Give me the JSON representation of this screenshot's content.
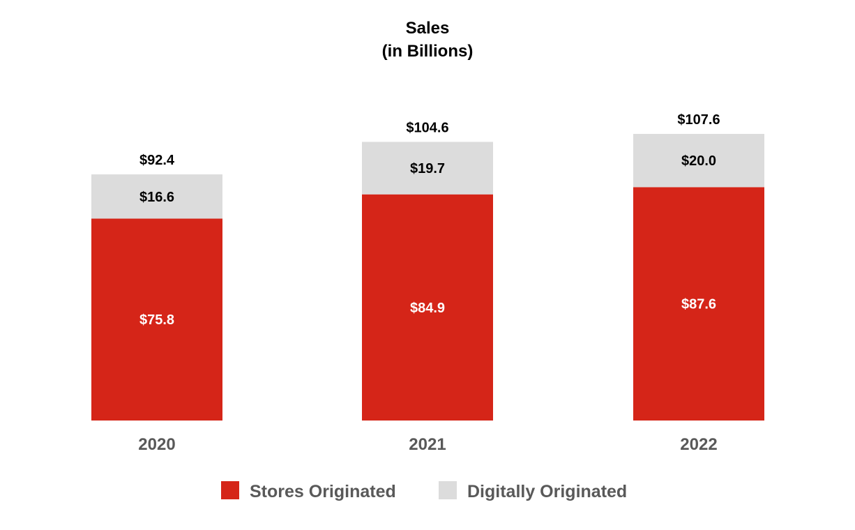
{
  "chart_data": {
    "type": "bar",
    "stacked": true,
    "title": [
      "Sales",
      "(in Billions)"
    ],
    "categories": [
      "2020",
      "2021",
      "2022"
    ],
    "series": [
      {
        "name": "Stores Originated",
        "values": [
          75.8,
          84.9,
          87.6
        ],
        "labels": [
          "$75.8",
          "$84.9",
          "$87.6"
        ],
        "color": "#d52518"
      },
      {
        "name": "Digitally Originated",
        "values": [
          16.6,
          19.7,
          20.0
        ],
        "labels": [
          "$16.6",
          "$19.7",
          "$20.0"
        ],
        "color": "#dcdcdc"
      }
    ],
    "totals": [
      92.4,
      104.6,
      107.6
    ],
    "total_labels": [
      "$92.4",
      "$104.6",
      "$107.6"
    ],
    "ylim": [
      0,
      107.6
    ],
    "grid": false,
    "legend": "bottom"
  }
}
